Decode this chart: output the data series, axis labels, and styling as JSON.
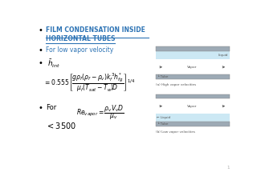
{
  "bg_color": "#ffffff",
  "title_color": "#2E74B5",
  "text_color": "#000000",
  "bullet_color": "#000000",
  "page_number": "1",
  "bullet1_line1": "FILM CONDENSATION INSIDE",
  "bullet1_line2": "HORIZONTAL TUBES",
  "bullet2": "For low vapor velocity",
  "eq1_h": "$\\bar{h}_{int}$",
  "eq1": "$= 0.555\\left[\\dfrac{g\\rho_f(\\rho_f-\\rho_v)k_f^{\\,3}h_{fg}^{*}}{\\mu_f(T_{sat}-T_w)D}\\right]^{1/4}$",
  "bullet3_for": "For",
  "eq2": "$Re_{vapor} = \\dfrac{\\rho_v V_v D}{\\mu_v}$",
  "eq3": "$< 3500$",
  "diagram_vapor_label": "Vapor",
  "diagram_tube_label_top": "Tube",
  "diagram_caption_top": "(a) High vapor velocities",
  "diagram_tube_label_bot": "Tube",
  "diagram_caption_bot": "(b) Low vapor velocities",
  "diagram_liquid_label_top": "Liquid",
  "diagram_liquid_label_bot": "Liquid",
  "liquid_color": "#cce8f4",
  "tube_wall_color": "#9daab5",
  "tube_wall_edge": "#888888",
  "arrow_color": "#555555",
  "label_color": "#555555"
}
